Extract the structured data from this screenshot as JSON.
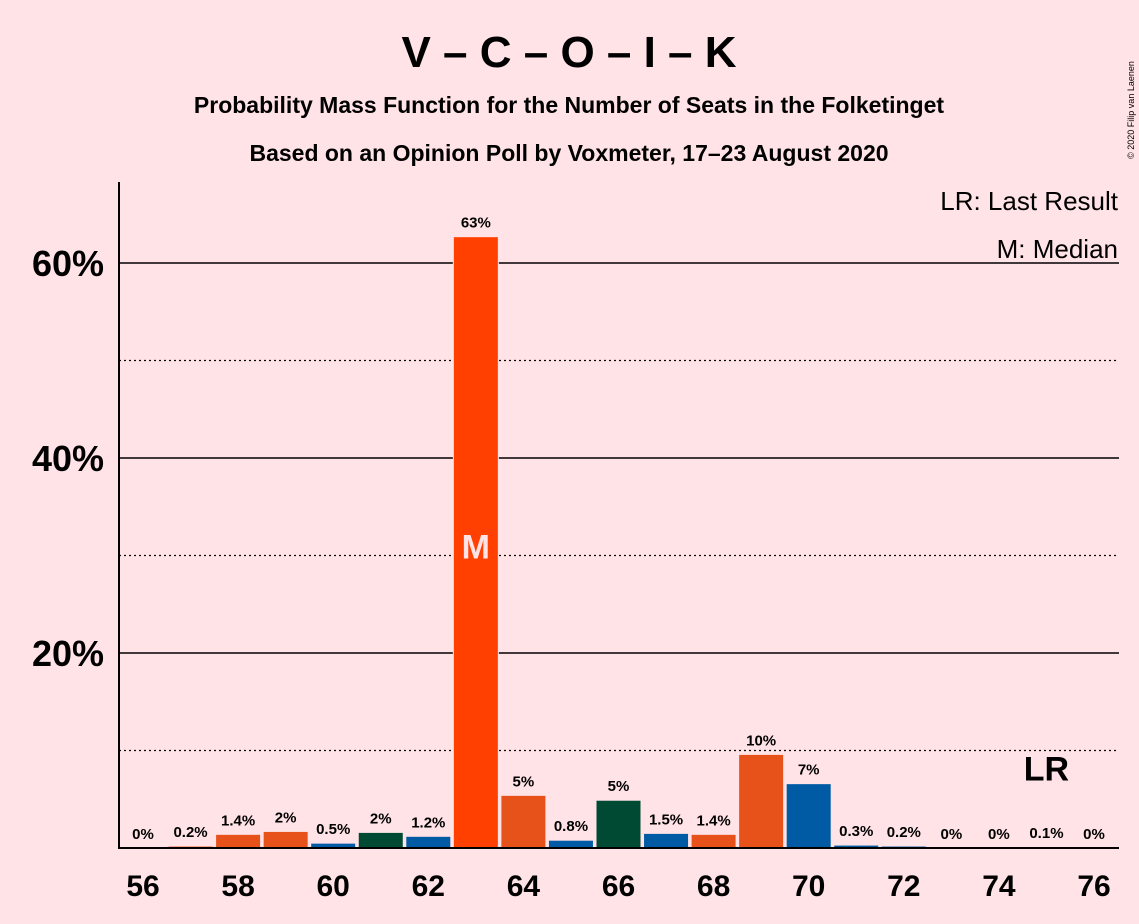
{
  "chart_data": {
    "type": "bar",
    "title": "V – C – O – I – K",
    "subtitle_1": "Probability Mass Function for the Number of Seats in the Folketinget",
    "subtitle_2": "Based on an Opinion Poll by Voxmeter, 17–23 August 2020",
    "copyright": "© 2020 Filip van Laenen",
    "x": [
      56,
      57,
      58,
      59,
      60,
      61,
      62,
      63,
      64,
      65,
      66,
      67,
      68,
      69,
      70,
      71,
      72,
      73,
      74,
      75,
      76
    ],
    "values": [
      0,
      0.2,
      1.4,
      1.7,
      0.5,
      1.6,
      1.2,
      62.7,
      5.4,
      0.8,
      4.9,
      1.5,
      1.4,
      9.6,
      6.6,
      0.3,
      0.2,
      0,
      0,
      0.1,
      0
    ],
    "data_labels": [
      "0%",
      "0.2%",
      "1.4%",
      "2%",
      "0.5%",
      "2%",
      "1.2%",
      "63%",
      "5%",
      "0.8%",
      "5%",
      "1.5%",
      "1.4%",
      "10%",
      "7%",
      "0.3%",
      "0.2%",
      "0%",
      "0%",
      "0.1%",
      "0%"
    ],
    "bar_colors": [
      "#E6521A",
      "#E6521A",
      "#E6521A",
      "#E6521A",
      "#005BA4",
      "#004A33",
      "#005BA4",
      "#FF4000",
      "#E6521A",
      "#005BA4",
      "#004A33",
      "#005BA4",
      "#E6521A",
      "#E6521A",
      "#005BA4",
      "#005BA4",
      "#005BA4",
      "#005BA4",
      "#005BA4",
      "#005BA4",
      "#005BA4"
    ],
    "xtick_labels": [
      "56",
      "58",
      "60",
      "62",
      "64",
      "66",
      "68",
      "70",
      "72",
      "74",
      "76"
    ],
    "ytick_labels": [
      "20%",
      "40%",
      "60%"
    ],
    "ylim": [
      0,
      68
    ],
    "grid": {
      "solid": [
        20,
        40,
        60
      ],
      "dotted": [
        10,
        30,
        50
      ]
    },
    "median_seat": 63,
    "median_marker": "M",
    "last_result_seat": 75,
    "last_result_marker": "LR",
    "legend": [
      "LR: Last Result",
      "M: Median"
    ],
    "legend_position": "top-right"
  }
}
